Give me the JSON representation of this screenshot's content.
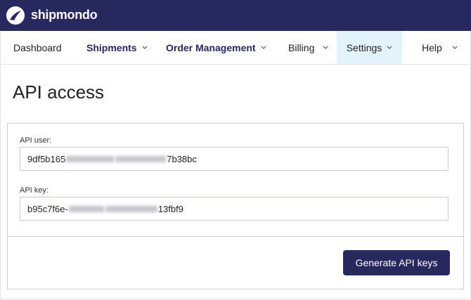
{
  "header": {
    "brand": "shipmondo"
  },
  "nav": {
    "items": [
      "Dashboard",
      "Shipments",
      "Order Management",
      "Billing",
      "Settings",
      "Help"
    ]
  },
  "page": {
    "title": "API access"
  },
  "form": {
    "fields": [
      {
        "label": "API user:",
        "value_start": "9df5b165",
        "value_end": "7b38bc"
      },
      {
        "label": "API key:",
        "value_start": "b95c7f6e-",
        "value_end": "13fbf9"
      }
    ],
    "button": "Generate API keys"
  }
}
